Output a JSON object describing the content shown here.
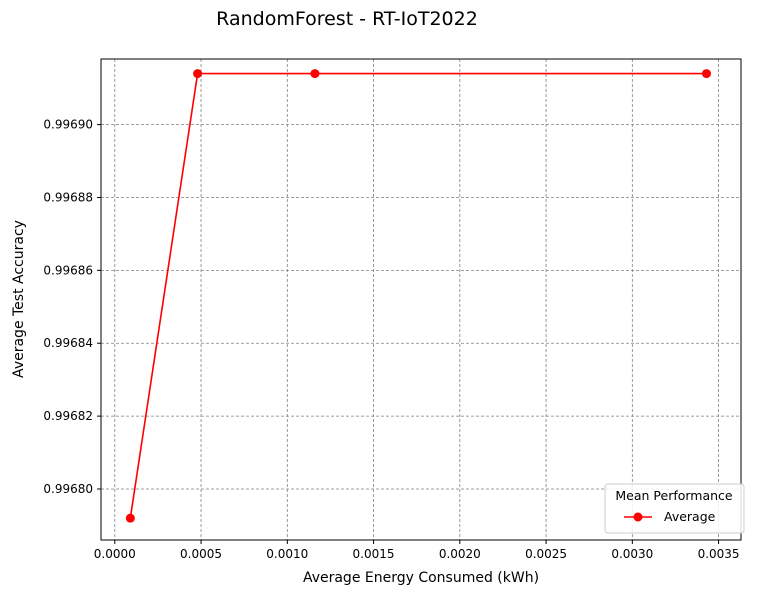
{
  "chart_data": {
    "type": "line",
    "title": "RandomForest - RT-IoT2022",
    "xlabel": "Average Energy Consumed (kWh)",
    "ylabel": "Average Test Accuracy",
    "xlim": [
      -8e-05,
      0.00363
    ],
    "ylim": [
      0.996786,
      0.996918
    ],
    "x_ticks": [
      0.0,
      0.0005,
      0.001,
      0.0015,
      0.002,
      0.0025,
      0.003,
      0.0035
    ],
    "x_tick_labels": [
      "0.0000",
      "0.0005",
      "0.0010",
      "0.0015",
      "0.0020",
      "0.0025",
      "0.0030",
      "0.0035"
    ],
    "y_ticks": [
      0.9968,
      0.99682,
      0.99684,
      0.99686,
      0.99688,
      0.9969
    ],
    "y_tick_labels": [
      "0.99680",
      "0.99682",
      "0.99684",
      "0.99686",
      "0.99688",
      "0.99690"
    ],
    "grid": true,
    "legend": {
      "title": "Mean Performance",
      "placement": "lower-right"
    },
    "series": [
      {
        "name": "Average",
        "color": "#ff0000",
        "marker": "circle",
        "x": [
          9e-05,
          0.00048,
          0.00116,
          0.00343
        ],
        "y": [
          0.996792,
          0.996914,
          0.996914,
          0.996914
        ]
      }
    ]
  }
}
